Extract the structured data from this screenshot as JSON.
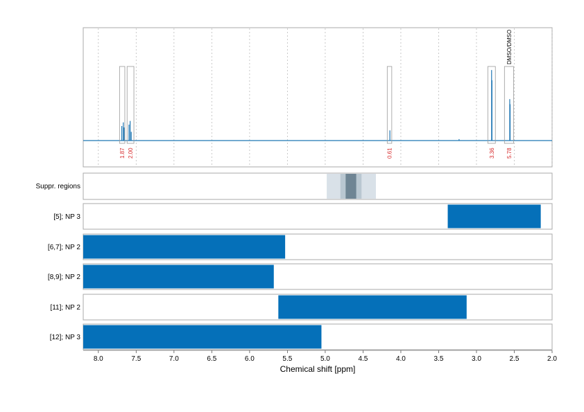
{
  "chart_data": {
    "type": "nmr-spectrum-with-range-bars",
    "x_axis": {
      "label": "Chemical shift [ppm]",
      "range": [
        8.2,
        2.0
      ],
      "reversed": true,
      "ticks": [
        "8.0",
        "7.5",
        "7.0",
        "6.5",
        "6.0",
        "5.5",
        "5.0",
        "4.5",
        "4.0",
        "3.5",
        "3.0",
        "2.5",
        "2.0"
      ]
    },
    "spectrum": {
      "color": "#1f77b4",
      "grid": "vertical dotted",
      "baseline_ppm_range": [
        8.2,
        2.0
      ],
      "peaks": [
        {
          "ppm": 7.69,
          "height": 0.2
        },
        {
          "ppm": 7.67,
          "height": 0.25
        },
        {
          "ppm": 7.66,
          "height": 0.18
        },
        {
          "ppm": 7.595,
          "height": 0.22
        },
        {
          "ppm": 7.58,
          "height": 0.27
        },
        {
          "ppm": 7.565,
          "height": 0.12
        },
        {
          "ppm": 4.145,
          "height": 0.14
        },
        {
          "ppm": 3.23,
          "height": 0.02
        },
        {
          "ppm": 2.8,
          "height": 0.97
        },
        {
          "ppm": 2.795,
          "height": 0.83
        },
        {
          "ppm": 2.56,
          "height": 0.57
        },
        {
          "ppm": 2.555,
          "height": 0.5
        }
      ],
      "integration_boxes": [
        {
          "from": 7.72,
          "to": 7.65,
          "label": "1.87"
        },
        {
          "from": 7.62,
          "to": 7.53,
          "label": "2.00"
        },
        {
          "from": 4.18,
          "to": 4.12,
          "label": "0.61"
        },
        {
          "from": 2.85,
          "to": 2.75,
          "label": "3.36"
        },
        {
          "from": 2.63,
          "to": 2.51,
          "label": "5.78",
          "annotation": "DMSO/DMSO"
        }
      ],
      "label_color": "#d62728"
    },
    "suppressed_regions": {
      "label": "Suppr. regions",
      "bands": [
        {
          "from": 4.98,
          "to": 4.33,
          "color": "#d9e1e8"
        },
        {
          "from": 4.8,
          "to": 4.52,
          "color": "#b9c7d1"
        },
        {
          "from": 4.73,
          "to": 4.59,
          "color": "#6f8594"
        }
      ]
    },
    "range_rows": [
      {
        "label": "[5]; NP 3",
        "from": 3.38,
        "to": 2.15
      },
      {
        "label": "[6,7]; NP 2",
        "from": 8.2,
        "to": 5.53
      },
      {
        "label": "[8,9]; NP 2",
        "from": 8.2,
        "to": 5.68
      },
      {
        "label": "[11]; NP 2",
        "from": 5.62,
        "to": 3.13
      },
      {
        "label": "[12]; NP 3",
        "from": 8.2,
        "to": 5.05
      }
    ],
    "bar_color": "#0570b9"
  }
}
